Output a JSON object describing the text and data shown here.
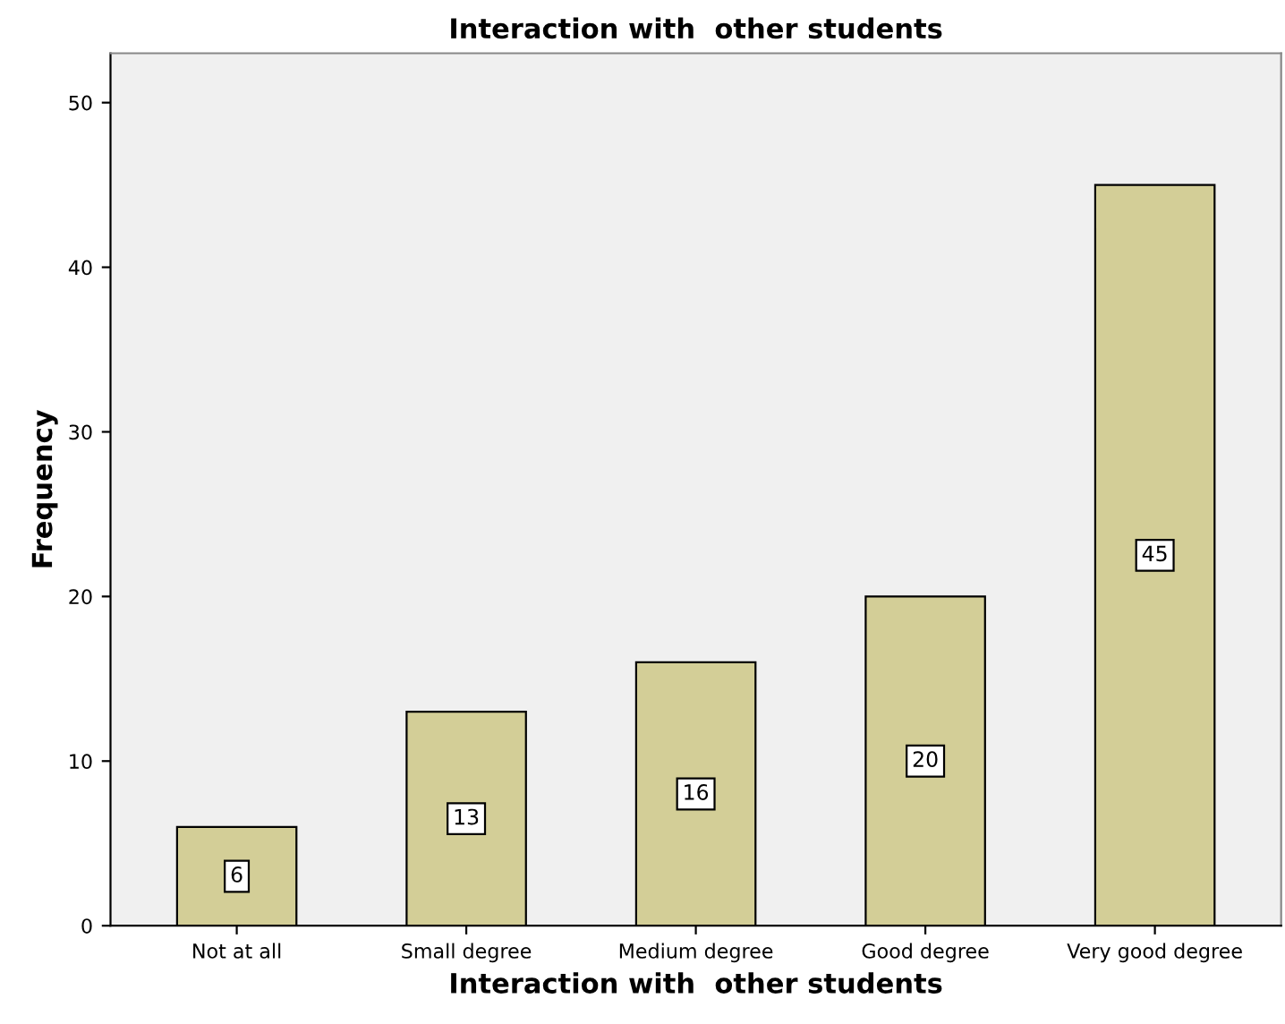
{
  "chart_data": {
    "type": "bar",
    "title": "Interaction with  other students",
    "xlabel": "Interaction with  other students",
    "ylabel": "Frequency",
    "categories": [
      "Not at all",
      "Small degree",
      "Medium degree",
      "Good degree",
      "Very good degree"
    ],
    "values": [
      6,
      13,
      16,
      20,
      45
    ],
    "color": "#d3ce97",
    "ylim": [
      0,
      53
    ],
    "yticks": [
      0,
      10,
      20,
      30,
      40,
      50
    ],
    "data_labels": true,
    "grid": false,
    "legend": false
  }
}
